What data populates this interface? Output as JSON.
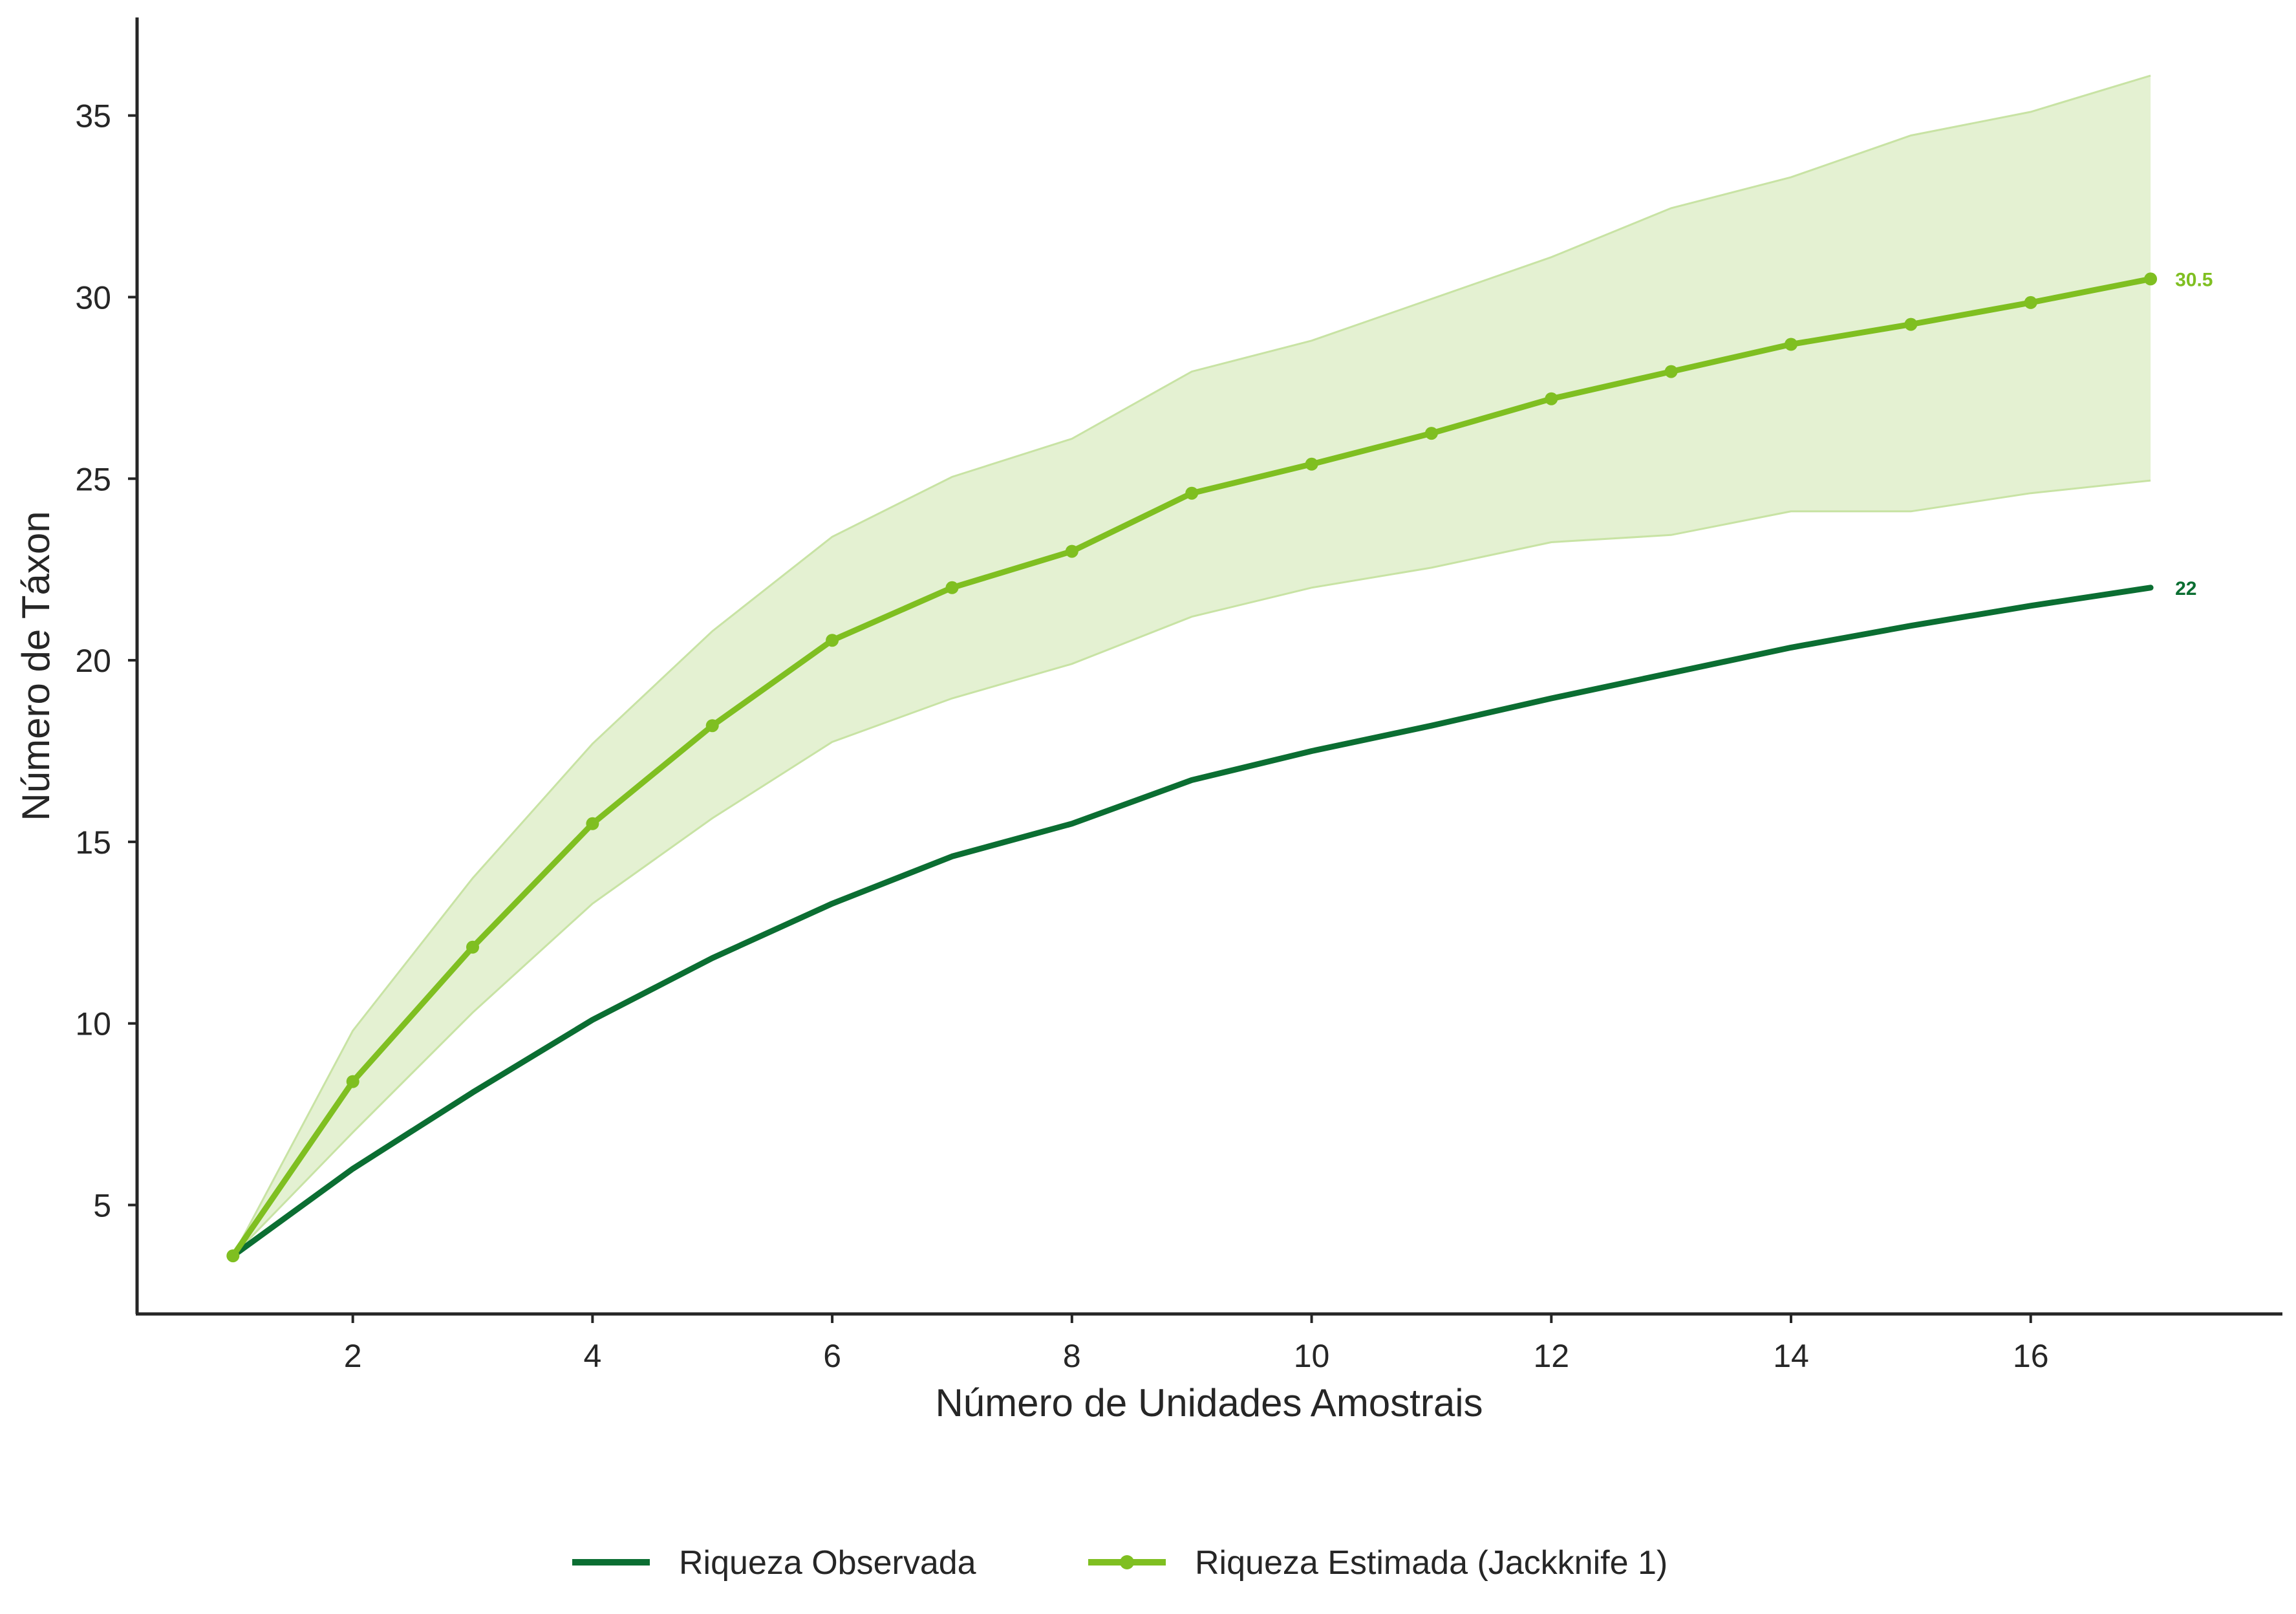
{
  "chart_data": {
    "type": "line",
    "title": "",
    "xlabel": "Número de Unidades Amostrais",
    "ylabel": "Número de Táxon",
    "xlim": [
      0.2,
      18.1
    ],
    "ylim": [
      2,
      37.7
    ],
    "xticks": [
      2,
      4,
      6,
      8,
      10,
      12,
      14,
      16
    ],
    "yticks": [
      5,
      10,
      15,
      20,
      25,
      30,
      35
    ],
    "grid": false,
    "legend_position": "bottom-center",
    "x": [
      1,
      2,
      3,
      4,
      5,
      6,
      7,
      8,
      9,
      10,
      11,
      12,
      13,
      14,
      15,
      16,
      17
    ],
    "series": [
      {
        "name": "Riqueza Observada",
        "color": "#0b6e32",
        "markers": false,
        "values": [
          3.6,
          6.0,
          8.1,
          10.1,
          11.8,
          13.3,
          14.6,
          15.5,
          16.7,
          17.5,
          18.2,
          18.95,
          19.65,
          20.35,
          20.95,
          21.5,
          22.0
        ],
        "end_label": "22"
      },
      {
        "name": "Riqueza Estimada (Jackknife 1)",
        "color": "#7fbf21",
        "markers": true,
        "values": [
          3.6,
          8.4,
          12.1,
          15.5,
          18.2,
          20.55,
          22.0,
          23.0,
          24.6,
          25.4,
          26.25,
          27.2,
          27.95,
          28.7,
          29.25,
          29.85,
          30.5
        ],
        "end_label": "30.5"
      }
    ],
    "confidence_band": {
      "series": "Riqueza Estimada (Jackknife 1)",
      "fill_color": "#e4f1d2",
      "edge_color": "#c8e3a4",
      "lower": [
        3.6,
        7.0,
        10.3,
        13.3,
        15.65,
        17.75,
        18.95,
        19.9,
        21.2,
        22.0,
        22.55,
        23.25,
        23.45,
        24.1,
        24.1,
        24.6,
        24.95
      ],
      "upper": [
        3.6,
        9.8,
        14.0,
        17.7,
        20.8,
        23.4,
        25.05,
        26.1,
        27.95,
        28.8,
        29.95,
        31.1,
        32.45,
        33.3,
        34.45,
        35.1,
        36.1
      ]
    }
  }
}
